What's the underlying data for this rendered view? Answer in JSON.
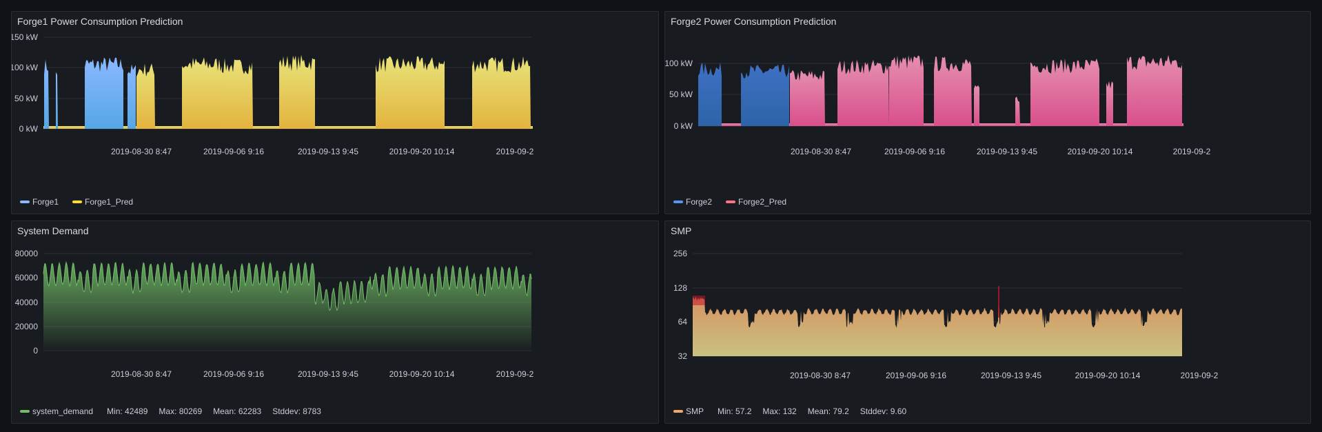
{
  "panels": [
    {
      "id": "p1",
      "title": "Forge1 Power Consumption Prediction",
      "y_ticks": [
        "150 kW",
        "100 kW",
        "50 kW",
        "0 kW"
      ],
      "x_ticks": [
        "2019-08-30 8:47",
        "2019-09-06 9:16",
        "2019-09-13 9:45",
        "2019-09-20 10:14",
        "2019-09-2"
      ],
      "legend": [
        {
          "label": "Forge1",
          "color": "#8ab8ff"
        },
        {
          "label": "Forge1_Pred",
          "color": "#fade2a"
        }
      ]
    },
    {
      "id": "p2",
      "title": "Forge2 Power Consumption Prediction",
      "y_ticks": [
        "100 kW",
        "50 kW",
        "0 kW"
      ],
      "x_ticks": [
        "2019-08-30 8:47",
        "2019-09-06 9:16",
        "2019-09-13 9:45",
        "2019-09-20 10:14",
        "2019-09-2"
      ],
      "legend": [
        {
          "label": "Forge2",
          "color": "#5794f2"
        },
        {
          "label": "Forge2_Pred",
          "color": "#ff7383"
        }
      ]
    },
    {
      "id": "p3",
      "title": "System Demand",
      "y_ticks": [
        "80000",
        "60000",
        "40000",
        "20000",
        "0"
      ],
      "x_ticks": [
        "2019-08-30 8:47",
        "2019-09-06 9:16",
        "2019-09-13 9:45",
        "2019-09-20 10:14",
        "2019-09-2"
      ],
      "legend": [
        {
          "label": "system_demand",
          "color": "#73bf69"
        }
      ],
      "stats": {
        "min": "Min: 42489",
        "max": "Max: 80269",
        "mean": "Mean: 62283",
        "stddev": "Stddev: 8783"
      }
    },
    {
      "id": "p4",
      "title": "SMP",
      "y_ticks": [
        "256",
        "128",
        "64",
        "32"
      ],
      "x_ticks": [
        "2019-08-30 8:47",
        "2019-09-06 9:16",
        "2019-09-13 9:45",
        "2019-09-20 10:14",
        "2019-09-2"
      ],
      "legend": [
        {
          "label": "SMP",
          "color": "#f2a66c"
        }
      ],
      "stats": {
        "min": "Min: 57.2",
        "max": "Max: 132",
        "mean": "Mean: 79.2",
        "stddev": "Stddev: 9.60"
      }
    }
  ],
  "colors": {
    "forge1": "#8ab8ff",
    "forge1_pred": "#fade2a",
    "forge2": "#5794f2",
    "forge2_pred": "#ff7383",
    "demand": "#73bf69",
    "smp": "#f2a66c",
    "smp_spike": "#c4162a"
  }
}
